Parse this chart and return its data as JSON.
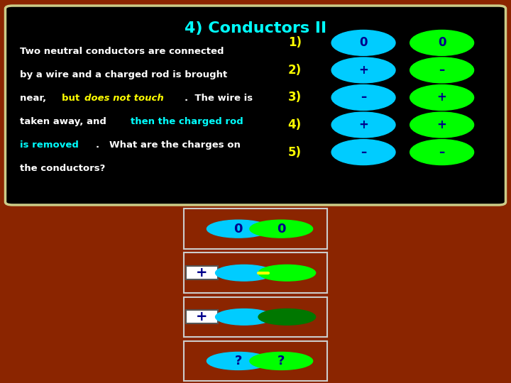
{
  "title": "4) Conductors II",
  "title_color": "#00FFFF",
  "bg_color": "#000000",
  "outer_bg": "#8B2500",
  "box_border_color": "#CCCC88",
  "text_color": "#FFFFFF",
  "highlight_yellow": "#FFFF00",
  "highlight_cyan": "#00FFFF",
  "rows": [
    {
      "label": "1)",
      "c1_symbol": "0",
      "c2_symbol": "0",
      "c1_color": "#00CCFF",
      "c2_color": "#00FF00"
    },
    {
      "label": "2)",
      "c1_symbol": "+",
      "c2_symbol": "–",
      "c1_color": "#00CCFF",
      "c2_color": "#00FF00"
    },
    {
      "label": "3)",
      "c1_symbol": "–",
      "c2_symbol": "+",
      "c1_color": "#00CCFF",
      "c2_color": "#00FF00"
    },
    {
      "label": "4)",
      "c1_symbol": "+",
      "c2_symbol": "+",
      "c1_color": "#00CCFF",
      "c2_color": "#00FF00"
    },
    {
      "label": "5)",
      "c1_symbol": "–",
      "c2_symbol": "–",
      "c1_color": "#00CCFF",
      "c2_color": "#00FF00"
    }
  ],
  "label_color": "#FFFF00",
  "cyan_color": "#00CCFF",
  "green_color": "#00FF00",
  "dark_blue": "#00008B",
  "white": "#FFFFFF",
  "yellow": "#FFFF00",
  "panel_border": "#CCCCCC"
}
